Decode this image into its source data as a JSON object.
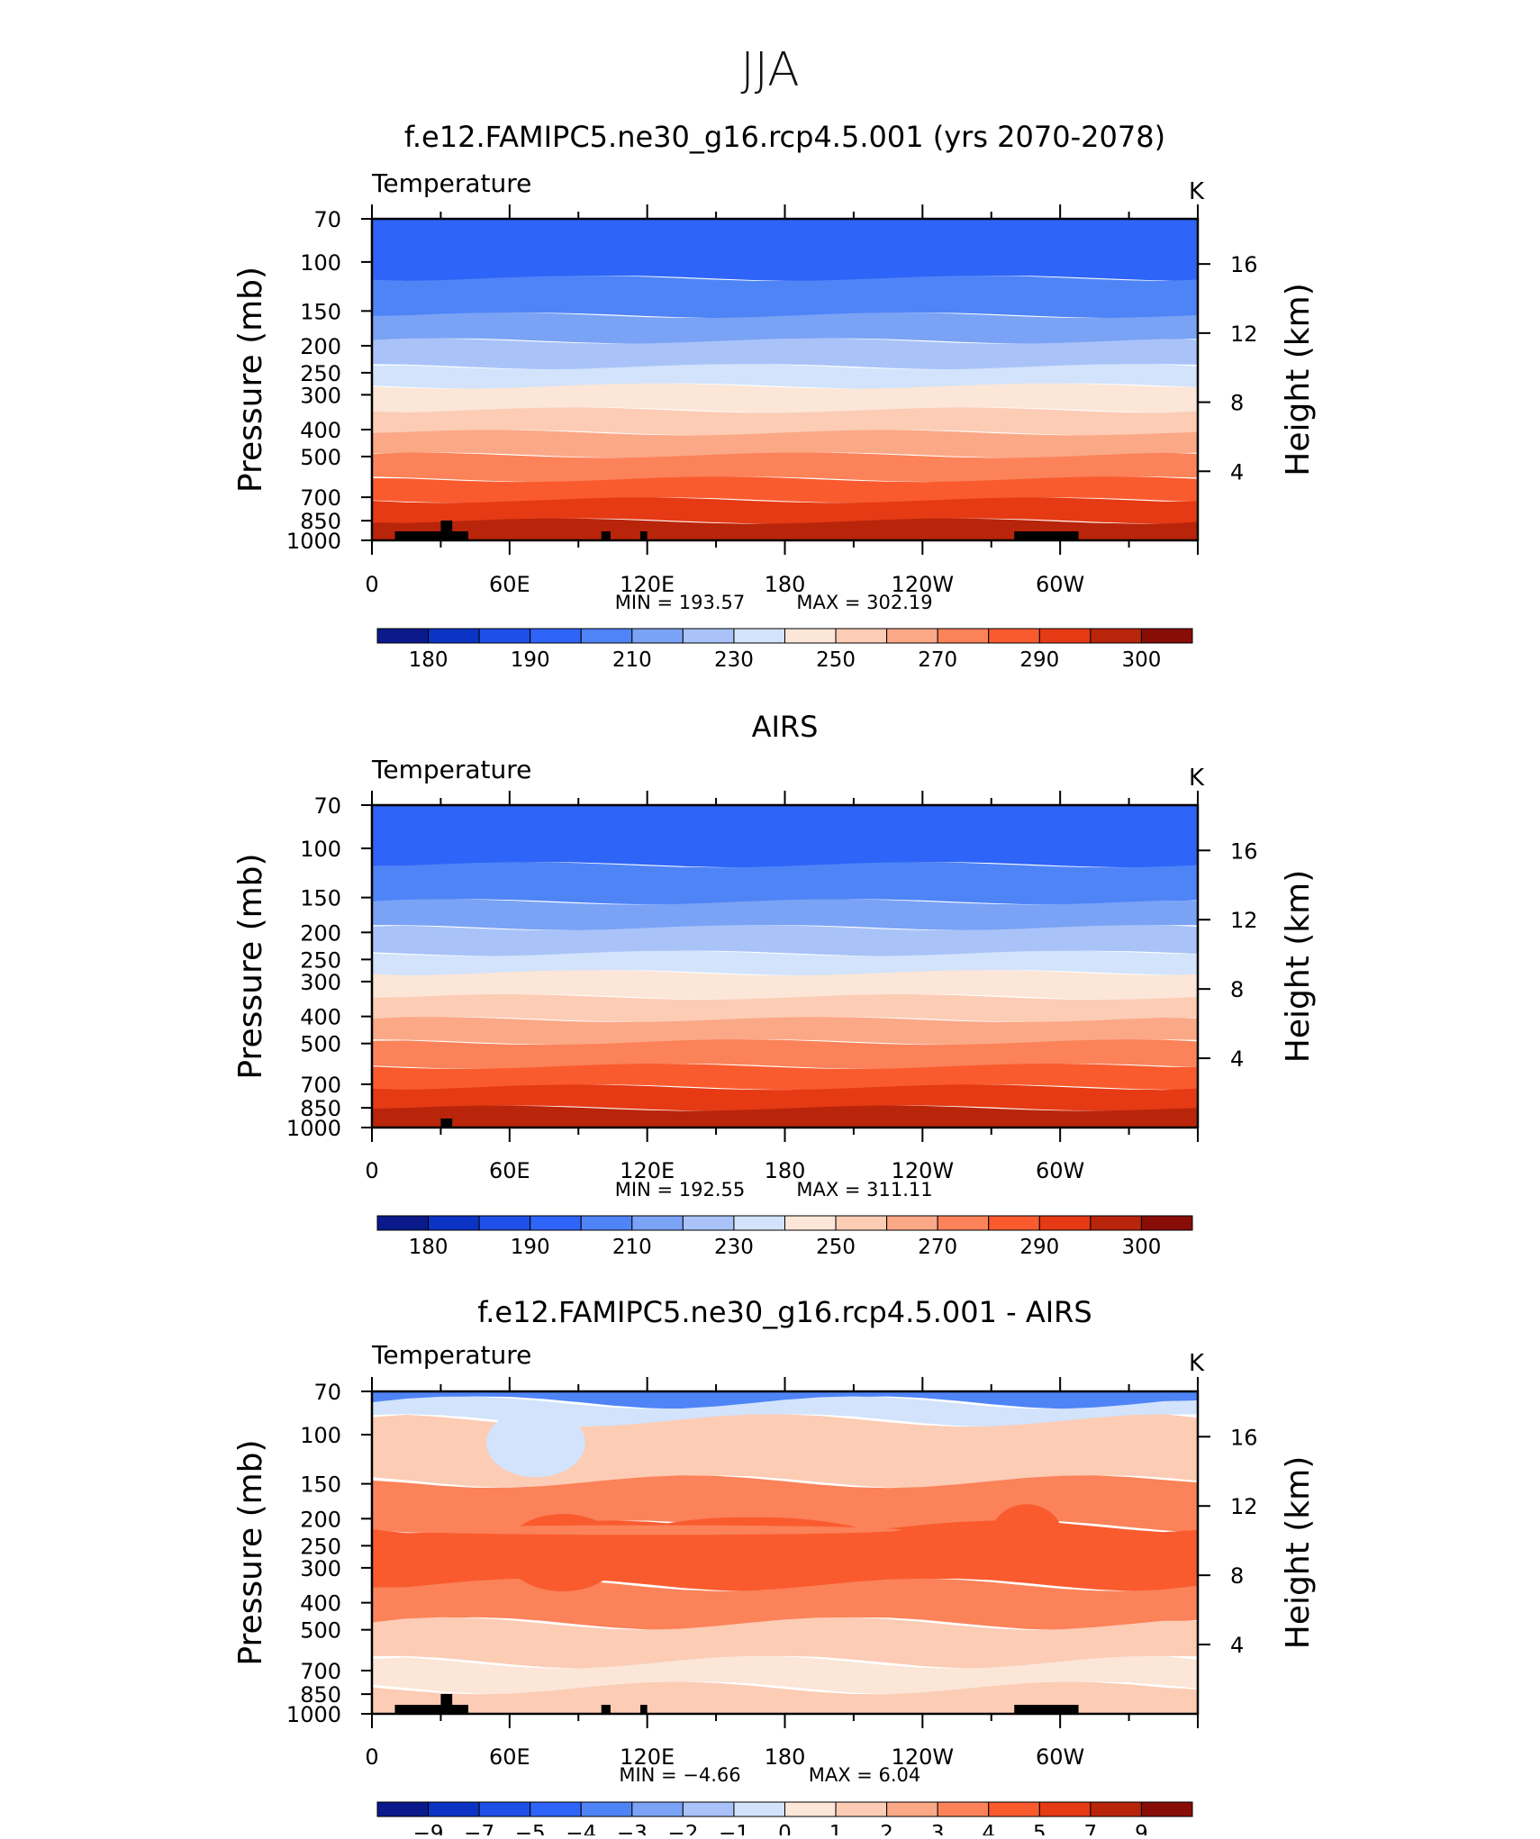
{
  "figure": {
    "title": "JJA"
  },
  "colors": {
    "frame": "#000000",
    "land": "#000000"
  },
  "chart_data": [
    {
      "type": "heatmap",
      "title": "f.e12.FAMIPC5.ne30_g16.rcp4.5.001 (yrs 2070-2078)",
      "variable": "Temperature",
      "units": "K",
      "ylabel": "Pressure (mb)",
      "y2label": "Height (km)",
      "y_ticks": [
        "70",
        "100",
        "150",
        "200",
        "250",
        "300",
        "400",
        "500",
        "700",
        "850",
        "1000"
      ],
      "y_tick_values": [
        70,
        100,
        150,
        200,
        250,
        300,
        400,
        500,
        700,
        850,
        1000
      ],
      "y2_ticks": [
        "16",
        "12",
        "8",
        "4"
      ],
      "y2_tick_values": [
        16,
        12,
        8,
        4
      ],
      "x_ticks": [
        "0",
        "60E",
        "120E",
        "180",
        "120W",
        "60W"
      ],
      "x_tick_values": [
        0,
        60,
        120,
        180,
        240,
        300
      ],
      "xlim": [
        0,
        360
      ],
      "ylim": [
        70,
        1000
      ],
      "min_label": "MIN  =  193.57",
      "max_label": "MAX  =  302.19",
      "colorbar_labels": [
        "180",
        "190",
        "210",
        "230",
        "250",
        "270",
        "290",
        "300"
      ],
      "colorbar_colors": [
        "#0a1a8a",
        "#0b34c4",
        "#1e4fe6",
        "#2e64f7",
        "#4f84f7",
        "#7aa2f5",
        "#a9c3f9",
        "#d2e3fb",
        "#fbe6d7",
        "#fcccb5",
        "#fba887",
        "#fb8259",
        "#f95b2f",
        "#e53a14",
        "#b8250b",
        "#880d07"
      ]
    },
    {
      "type": "heatmap",
      "title": "AIRS",
      "variable": "Temperature",
      "units": "K",
      "ylabel": "Pressure (mb)",
      "y2label": "Height (km)",
      "y_ticks": [
        "70",
        "100",
        "150",
        "200",
        "250",
        "300",
        "400",
        "500",
        "700",
        "850",
        "1000"
      ],
      "y_tick_values": [
        70,
        100,
        150,
        200,
        250,
        300,
        400,
        500,
        700,
        850,
        1000
      ],
      "y2_ticks": [
        "16",
        "12",
        "8",
        "4"
      ],
      "y2_tick_values": [
        16,
        12,
        8,
        4
      ],
      "x_ticks": [
        "0",
        "60E",
        "120E",
        "180",
        "120W",
        "60W"
      ],
      "x_tick_values": [
        0,
        60,
        120,
        180,
        240,
        300
      ],
      "xlim": [
        0,
        360
      ],
      "ylim": [
        70,
        1000
      ],
      "min_label": "MIN  =  192.55",
      "max_label": "MAX  =  311.11",
      "colorbar_labels": [
        "180",
        "190",
        "210",
        "230",
        "250",
        "270",
        "290",
        "300"
      ],
      "colorbar_colors": [
        "#0a1a8a",
        "#0b34c4",
        "#1e4fe6",
        "#2e64f7",
        "#4f84f7",
        "#7aa2f5",
        "#a9c3f9",
        "#d2e3fb",
        "#fbe6d7",
        "#fcccb5",
        "#fba887",
        "#fb8259",
        "#f95b2f",
        "#e53a14",
        "#b8250b",
        "#880d07"
      ]
    },
    {
      "type": "heatmap",
      "title": "f.e12.FAMIPC5.ne30_g16.rcp4.5.001 - AIRS",
      "variable": "Temperature",
      "units": "K",
      "ylabel": "Pressure (mb)",
      "y2label": "Height (km)",
      "y_ticks": [
        "70",
        "100",
        "150",
        "200",
        "250",
        "300",
        "400",
        "500",
        "700",
        "850",
        "1000"
      ],
      "y_tick_values": [
        70,
        100,
        150,
        200,
        250,
        300,
        400,
        500,
        700,
        850,
        1000
      ],
      "y2_ticks": [
        "16",
        "12",
        "8",
        "4"
      ],
      "y2_tick_values": [
        16,
        12,
        8,
        4
      ],
      "x_ticks": [
        "0",
        "60E",
        "120E",
        "180",
        "120W",
        "60W"
      ],
      "x_tick_values": [
        0,
        60,
        120,
        180,
        240,
        300
      ],
      "xlim": [
        0,
        360
      ],
      "ylim": [
        70,
        1000
      ],
      "min_label": "MIN  =   −4.66",
      "max_label": "MAX  =    6.04",
      "colorbar_labels": [
        "−9",
        "−7",
        "−5",
        "−4",
        "−3",
        "−2",
        "−1",
        "0",
        "1",
        "2",
        "3",
        "4",
        "5",
        "7",
        "9"
      ],
      "colorbar_colors": [
        "#0a1a8a",
        "#0b34c4",
        "#1e4fe6",
        "#2e64f7",
        "#4f84f7",
        "#7aa2f5",
        "#a9c3f9",
        "#d2e3fb",
        "#fbe6d7",
        "#fcccb5",
        "#fba887",
        "#fb8259",
        "#f95b2f",
        "#e53a14",
        "#b8250b",
        "#880d07"
      ]
    }
  ]
}
